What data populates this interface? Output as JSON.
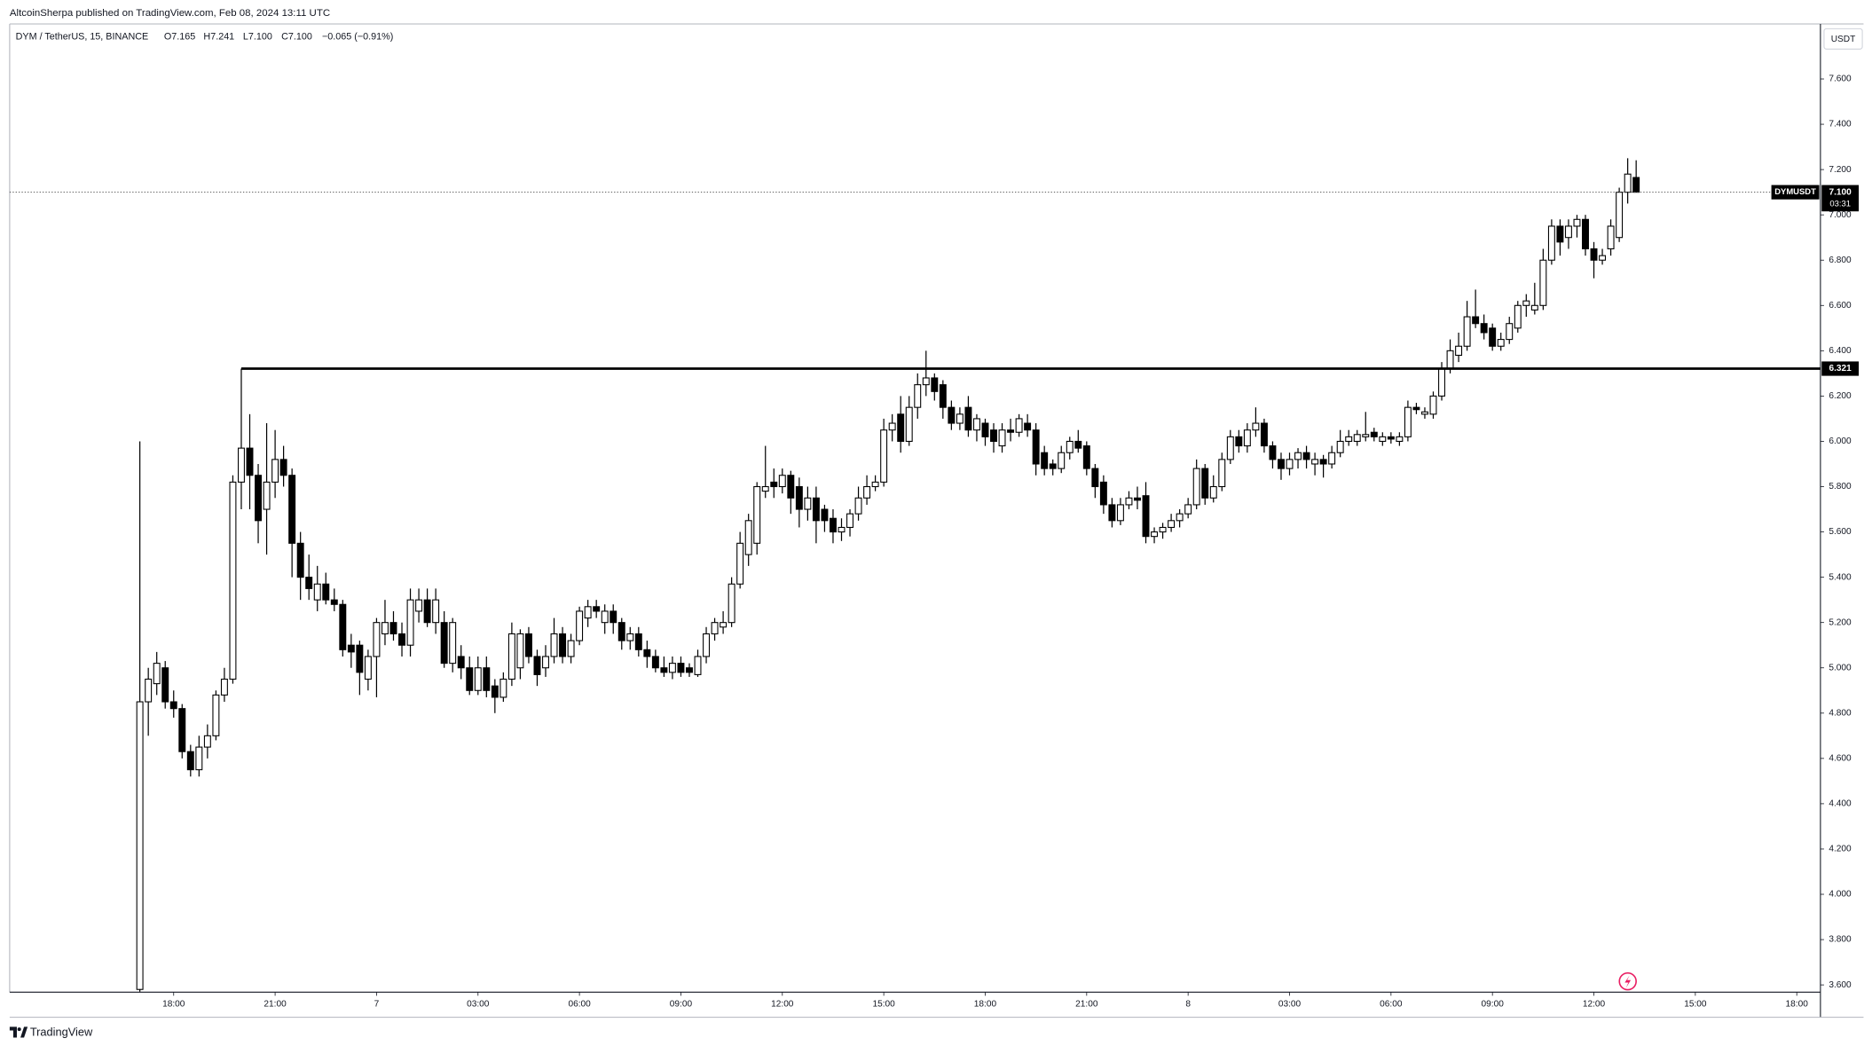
{
  "header": {
    "publisher": "AltcoinSherpa published on TradingView.com, Feb 08, 2024 13:11 UTC"
  },
  "footer": {
    "brand": "TradingView"
  },
  "chart_data": {
    "type": "candlestick",
    "legend": {
      "symbol": "DYM / TetherUS, 15, BINANCE",
      "open": "O7.165",
      "high": "H7.241",
      "low": "L7.100",
      "close": "C7.100",
      "change": "−0.065 (−0.91%)"
    },
    "currency": "USDT",
    "up_color": "#ffffff",
    "down_color": "#000000",
    "wick_color": "#000000",
    "ohlc": [
      [
        3.58,
        6.0,
        3.57,
        4.85
      ],
      [
        4.85,
        5.0,
        4.7,
        4.95
      ],
      [
        4.93,
        5.07,
        4.88,
        5.02
      ],
      [
        5.0,
        5.03,
        4.82,
        4.85
      ],
      [
        4.85,
        4.9,
        4.78,
        4.82
      ],
      [
        4.82,
        4.84,
        4.6,
        4.63
      ],
      [
        4.63,
        4.66,
        4.52,
        4.55
      ],
      [
        4.55,
        4.7,
        4.52,
        4.65
      ],
      [
        4.65,
        4.75,
        4.6,
        4.7
      ],
      [
        4.7,
        4.9,
        4.68,
        4.88
      ],
      [
        4.88,
        5.0,
        4.85,
        4.95
      ],
      [
        4.95,
        5.85,
        4.93,
        5.82
      ],
      [
        5.82,
        6.321,
        5.7,
        5.97
      ],
      [
        5.97,
        6.12,
        5.7,
        5.85
      ],
      [
        5.85,
        5.9,
        5.55,
        5.65
      ],
      [
        5.7,
        6.08,
        5.5,
        5.82
      ],
      [
        5.82,
        6.05,
        5.75,
        5.92
      ],
      [
        5.92,
        5.98,
        5.8,
        5.85
      ],
      [
        5.85,
        5.88,
        5.4,
        5.55
      ],
      [
        5.55,
        5.6,
        5.3,
        5.4
      ],
      [
        5.4,
        5.5,
        5.3,
        5.35
      ],
      [
        5.3,
        5.45,
        5.25,
        5.37
      ],
      [
        5.37,
        5.42,
        5.28,
        5.3
      ],
      [
        5.3,
        5.35,
        5.25,
        5.28
      ],
      [
        5.28,
        5.3,
        5.05,
        5.08
      ],
      [
        5.1,
        5.15,
        5.0,
        5.07
      ],
      [
        5.1,
        5.12,
        4.88,
        4.98
      ],
      [
        4.95,
        5.08,
        4.9,
        5.05
      ],
      [
        5.05,
        5.22,
        4.87,
        5.2
      ],
      [
        5.15,
        5.3,
        5.1,
        5.2
      ],
      [
        5.2,
        5.25,
        5.12,
        5.15
      ],
      [
        5.15,
        5.2,
        5.05,
        5.1
      ],
      [
        5.1,
        5.35,
        5.05,
        5.3
      ],
      [
        5.25,
        5.35,
        5.2,
        5.3
      ],
      [
        5.3,
        5.35,
        5.18,
        5.2
      ],
      [
        5.2,
        5.35,
        5.15,
        5.3
      ],
      [
        5.2,
        5.25,
        5.0,
        5.02
      ],
      [
        5.02,
        5.22,
        4.98,
        5.2
      ],
      [
        5.05,
        5.1,
        4.95,
        5.0
      ],
      [
        5.0,
        5.05,
        4.88,
        4.9
      ],
      [
        4.9,
        5.05,
        4.88,
        5.0
      ],
      [
        5.0,
        5.05,
        4.87,
        4.9
      ],
      [
        4.92,
        4.95,
        4.8,
        4.87
      ],
      [
        4.87,
        4.98,
        4.85,
        4.95
      ],
      [
        4.95,
        5.2,
        4.92,
        5.15
      ],
      [
        5.0,
        5.17,
        4.95,
        5.15
      ],
      [
        5.15,
        5.18,
        5.02,
        5.05
      ],
      [
        5.05,
        5.08,
        4.92,
        4.97
      ],
      [
        5.0,
        5.1,
        4.96,
        5.05
      ],
      [
        5.05,
        5.22,
        5.02,
        5.15
      ],
      [
        5.15,
        5.18,
        5.02,
        5.05
      ],
      [
        5.05,
        5.15,
        5.02,
        5.12
      ],
      [
        5.12,
        5.27,
        5.1,
        5.25
      ],
      [
        5.22,
        5.3,
        5.18,
        5.27
      ],
      [
        5.27,
        5.3,
        5.22,
        5.25
      ],
      [
        5.2,
        5.28,
        5.15,
        5.25
      ],
      [
        5.25,
        5.28,
        5.15,
        5.2
      ],
      [
        5.2,
        5.22,
        5.08,
        5.12
      ],
      [
        5.12,
        5.18,
        5.08,
        5.15
      ],
      [
        5.15,
        5.18,
        5.05,
        5.08
      ],
      [
        5.08,
        5.12,
        5.0,
        5.05
      ],
      [
        5.05,
        5.08,
        4.98,
        5.0
      ],
      [
        5.0,
        5.05,
        4.96,
        4.98
      ],
      [
        4.98,
        5.05,
        4.95,
        5.02
      ],
      [
        5.02,
        5.05,
        4.96,
        4.98
      ],
      [
        5.0,
        5.02,
        4.96,
        4.98
      ],
      [
        4.97,
        5.08,
        4.96,
        5.05
      ],
      [
        5.05,
        5.18,
        5.02,
        5.15
      ],
      [
        5.15,
        5.22,
        5.12,
        5.2
      ],
      [
        5.18,
        5.25,
        5.15,
        5.2
      ],
      [
        5.2,
        5.4,
        5.18,
        5.37
      ],
      [
        5.37,
        5.6,
        5.35,
        5.55
      ],
      [
        5.5,
        5.68,
        5.45,
        5.65
      ],
      [
        5.55,
        5.82,
        5.5,
        5.8
      ],
      [
        5.78,
        5.98,
        5.75,
        5.8
      ],
      [
        5.82,
        5.88,
        5.75,
        5.8
      ],
      [
        5.8,
        5.88,
        5.77,
        5.85
      ],
      [
        5.85,
        5.87,
        5.68,
        5.75
      ],
      [
        5.8,
        5.84,
        5.62,
        5.7
      ],
      [
        5.7,
        5.8,
        5.65,
        5.75
      ],
      [
        5.75,
        5.8,
        5.55,
        5.65
      ],
      [
        5.7,
        5.72,
        5.6,
        5.65
      ],
      [
        5.66,
        5.7,
        5.55,
        5.6
      ],
      [
        5.6,
        5.66,
        5.56,
        5.62
      ],
      [
        5.62,
        5.7,
        5.58,
        5.68
      ],
      [
        5.68,
        5.8,
        5.65,
        5.75
      ],
      [
        5.75,
        5.85,
        5.72,
        5.8
      ],
      [
        5.8,
        5.85,
        5.78,
        5.82
      ],
      [
        5.82,
        6.1,
        5.8,
        6.05
      ],
      [
        6.05,
        6.12,
        6.0,
        6.08
      ],
      [
        6.12,
        6.2,
        5.95,
        6.0
      ],
      [
        6.0,
        6.2,
        5.98,
        6.15
      ],
      [
        6.15,
        6.3,
        6.1,
        6.25
      ],
      [
        6.25,
        6.4,
        6.2,
        6.28
      ],
      [
        6.28,
        6.3,
        6.18,
        6.22
      ],
      [
        6.25,
        6.27,
        6.1,
        6.15
      ],
      [
        6.15,
        6.18,
        6.05,
        6.08
      ],
      [
        6.08,
        6.15,
        6.05,
        6.12
      ],
      [
        6.15,
        6.2,
        6.02,
        6.05
      ],
      [
        6.05,
        6.12,
        6.0,
        6.1
      ],
      [
        6.08,
        6.1,
        5.98,
        6.02
      ],
      [
        6.05,
        6.08,
        5.95,
        6.0
      ],
      [
        5.98,
        6.08,
        5.95,
        6.05
      ],
      [
        6.05,
        6.1,
        6.0,
        6.04
      ],
      [
        6.04,
        6.12,
        6.02,
        6.1
      ],
      [
        6.08,
        6.12,
        6.02,
        6.05
      ],
      [
        6.05,
        6.08,
        5.85,
        5.9
      ],
      [
        5.95,
        5.98,
        5.85,
        5.88
      ],
      [
        5.9,
        5.92,
        5.85,
        5.88
      ],
      [
        5.88,
        5.98,
        5.86,
        5.95
      ],
      [
        5.95,
        6.02,
        5.92,
        6.0
      ],
      [
        6.0,
        6.05,
        5.95,
        5.97
      ],
      [
        5.98,
        6.0,
        5.85,
        5.88
      ],
      [
        5.88,
        5.9,
        5.75,
        5.8
      ],
      [
        5.82,
        5.85,
        5.68,
        5.72
      ],
      [
        5.72,
        5.75,
        5.62,
        5.65
      ],
      [
        5.65,
        5.75,
        5.63,
        5.72
      ],
      [
        5.72,
        5.78,
        5.7,
        5.75
      ],
      [
        5.75,
        5.8,
        5.7,
        5.74
      ],
      [
        5.76,
        5.82,
        5.55,
        5.58
      ],
      [
        5.58,
        5.62,
        5.55,
        5.6
      ],
      [
        5.6,
        5.64,
        5.57,
        5.62
      ],
      [
        5.62,
        5.68,
        5.6,
        5.65
      ],
      [
        5.65,
        5.7,
        5.62,
        5.68
      ],
      [
        5.68,
        5.75,
        5.66,
        5.72
      ],
      [
        5.72,
        5.92,
        5.7,
        5.88
      ],
      [
        5.88,
        5.9,
        5.72,
        5.75
      ],
      [
        5.75,
        5.85,
        5.73,
        5.8
      ],
      [
        5.8,
        5.95,
        5.78,
        5.92
      ],
      [
        5.92,
        6.05,
        5.9,
        6.02
      ],
      [
        6.02,
        6.05,
        5.95,
        5.98
      ],
      [
        5.98,
        6.08,
        5.95,
        6.05
      ],
      [
        6.05,
        6.15,
        6.02,
        6.08
      ],
      [
        6.08,
        6.1,
        5.95,
        5.98
      ],
      [
        5.98,
        6.0,
        5.88,
        5.92
      ],
      [
        5.92,
        5.95,
        5.83,
        5.88
      ],
      [
        5.88,
        5.95,
        5.85,
        5.92
      ],
      [
        5.92,
        5.97,
        5.88,
        5.95
      ],
      [
        5.95,
        5.98,
        5.88,
        5.92
      ],
      [
        5.9,
        5.95,
        5.85,
        5.92
      ],
      [
        5.92,
        5.94,
        5.84,
        5.9
      ],
      [
        5.9,
        5.98,
        5.88,
        5.95
      ],
      [
        5.95,
        6.05,
        5.93,
        6.0
      ],
      [
        6.0,
        6.05,
        5.98,
        6.02
      ],
      [
        6.0,
        6.05,
        5.98,
        6.03
      ],
      [
        6.02,
        6.13,
        6.0,
        6.03
      ],
      [
        6.04,
        6.06,
        6.0,
        6.02
      ],
      [
        6.0,
        6.04,
        5.98,
        6.02
      ],
      [
        6.02,
        6.04,
        5.99,
        6.01
      ],
      [
        6.0,
        6.04,
        5.98,
        6.02
      ],
      [
        6.02,
        6.18,
        6.0,
        6.15
      ],
      [
        6.15,
        6.17,
        6.12,
        6.14
      ],
      [
        6.12,
        6.15,
        6.1,
        6.13
      ],
      [
        6.12,
        6.22,
        6.1,
        6.2
      ],
      [
        6.2,
        6.35,
        6.18,
        6.32
      ],
      [
        6.32,
        6.45,
        6.3,
        6.4
      ],
      [
        6.38,
        6.48,
        6.35,
        6.42
      ],
      [
        6.42,
        6.62,
        6.4,
        6.55
      ],
      [
        6.55,
        6.67,
        6.5,
        6.52
      ],
      [
        6.52,
        6.56,
        6.45,
        6.48
      ],
      [
        6.5,
        6.52,
        6.4,
        6.42
      ],
      [
        6.42,
        6.48,
        6.4,
        6.45
      ],
      [
        6.45,
        6.55,
        6.43,
        6.52
      ],
      [
        6.5,
        6.62,
        6.48,
        6.6
      ],
      [
        6.6,
        6.65,
        6.55,
        6.62
      ],
      [
        6.58,
        6.7,
        6.56,
        6.6
      ],
      [
        6.6,
        6.85,
        6.58,
        6.8
      ],
      [
        6.8,
        6.98,
        6.78,
        6.95
      ],
      [
        6.95,
        6.98,
        6.82,
        6.88
      ],
      [
        6.9,
        6.98,
        6.85,
        6.95
      ],
      [
        6.95,
        7.0,
        6.9,
        6.98
      ],
      [
        6.98,
        7.0,
        6.82,
        6.85
      ],
      [
        6.85,
        6.88,
        6.72,
        6.8
      ],
      [
        6.8,
        6.85,
        6.78,
        6.82
      ],
      [
        6.85,
        6.98,
        6.82,
        6.95
      ],
      [
        6.9,
        7.12,
        6.88,
        7.1
      ],
      [
        7.1,
        7.25,
        7.05,
        7.18
      ],
      [
        7.165,
        7.241,
        7.1,
        7.1
      ]
    ],
    "xlim": [
      -15.4,
      198.8
    ],
    "xticks": [
      {
        "value": 4,
        "label": "18:00"
      },
      {
        "value": 16,
        "label": "21:00"
      },
      {
        "value": 28,
        "label": "7"
      },
      {
        "value": 40,
        "label": "03:00"
      },
      {
        "value": 52,
        "label": "06:00"
      },
      {
        "value": 64,
        "label": "09:00"
      },
      {
        "value": 76,
        "label": "12:00"
      },
      {
        "value": 88,
        "label": "15:00"
      },
      {
        "value": 100,
        "label": "18:00"
      },
      {
        "value": 112,
        "label": "21:00"
      },
      {
        "value": 124,
        "label": "8"
      },
      {
        "value": 136,
        "label": "03:00"
      },
      {
        "value": 148,
        "label": "06:00"
      },
      {
        "value": 160,
        "label": "09:00"
      },
      {
        "value": 172,
        "label": "12:00"
      },
      {
        "value": 184,
        "label": "15:00"
      },
      {
        "value": 196,
        "label": "18:00"
      }
    ],
    "ylim": [
      3.568,
      7.843
    ],
    "yticks": [
      {
        "value": 3.6,
        "label": "3.600"
      },
      {
        "value": 3.8,
        "label": "3.800"
      },
      {
        "value": 4.0,
        "label": "4.000"
      },
      {
        "value": 4.2,
        "label": "4.200"
      },
      {
        "value": 4.4,
        "label": "4.400"
      },
      {
        "value": 4.6,
        "label": "4.600"
      },
      {
        "value": 4.8,
        "label": "4.800"
      },
      {
        "value": 5.0,
        "label": "5.000"
      },
      {
        "value": 5.2,
        "label": "5.200"
      },
      {
        "value": 5.4,
        "label": "5.400"
      },
      {
        "value": 5.6,
        "label": "5.600"
      },
      {
        "value": 5.8,
        "label": "5.800"
      },
      {
        "value": 6.0,
        "label": "6.000"
      },
      {
        "value": 6.2,
        "label": "6.200"
      },
      {
        "value": 6.4,
        "label": "6.400"
      },
      {
        "value": 6.6,
        "label": "6.600"
      },
      {
        "value": 6.8,
        "label": "6.800"
      },
      {
        "value": 7.0,
        "label": "7.000"
      },
      {
        "value": 7.2,
        "label": "7.200"
      },
      {
        "value": 7.4,
        "label": "7.400"
      },
      {
        "value": 7.6,
        "label": "7.600"
      }
    ],
    "grid": false,
    "last_price": {
      "name": "DYMUSDT",
      "value": 7.1,
      "label": "7.100",
      "countdown": "03:31"
    },
    "level": {
      "value": 6.321,
      "label": "6.321"
    }
  }
}
